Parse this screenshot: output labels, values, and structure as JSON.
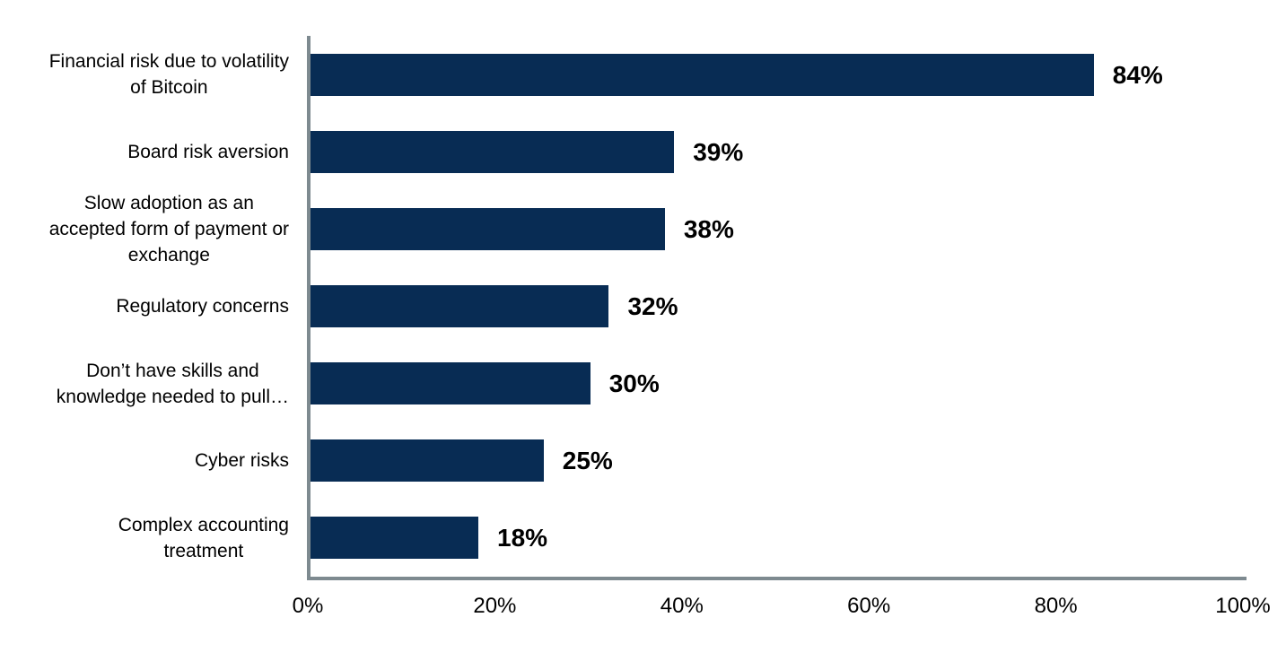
{
  "chart_data": {
    "type": "bar",
    "orientation": "horizontal",
    "title": "",
    "xlabel": "",
    "ylabel": "",
    "categories": [
      "Financial risk due to volatility of Bitcoin",
      "Board risk aversion",
      "Slow adoption as an accepted form of payment or exchange",
      "Regulatory concerns",
      "Don’t have skills and knowledge needed to pull…",
      "Cyber risks",
      "Complex accounting treatment"
    ],
    "category_display_lines": [
      [
        "Financial risk due to volatility",
        "of Bitcoin"
      ],
      [
        "Board risk aversion"
      ],
      [
        "Slow adoption as an",
        "accepted form of payment or",
        "exchange"
      ],
      [
        "Regulatory concerns"
      ],
      [
        "Don’t have skills and",
        "knowledge needed to pull…"
      ],
      [
        "Cyber risks"
      ],
      [
        "Complex accounting",
        "treatment"
      ]
    ],
    "values": [
      84,
      39,
      38,
      32,
      30,
      25,
      18
    ],
    "value_labels": [
      "84%",
      "39%",
      "38%",
      "32%",
      "30%",
      "25%",
      "18%"
    ],
    "xlim": [
      0,
      100
    ],
    "x_ticks": [
      {
        "value": 0,
        "label": "0%"
      },
      {
        "value": 20,
        "label": "20%"
      },
      {
        "value": 40,
        "label": "40%"
      },
      {
        "value": 60,
        "label": "60%"
      },
      {
        "value": 80,
        "label": "80%"
      },
      {
        "value": 100,
        "label": "100%"
      }
    ],
    "grid": false,
    "legend": false,
    "colors": {
      "bar": "#082c54",
      "axis": "#7e8a90",
      "text": "#000000",
      "background": "#ffffff"
    }
  }
}
